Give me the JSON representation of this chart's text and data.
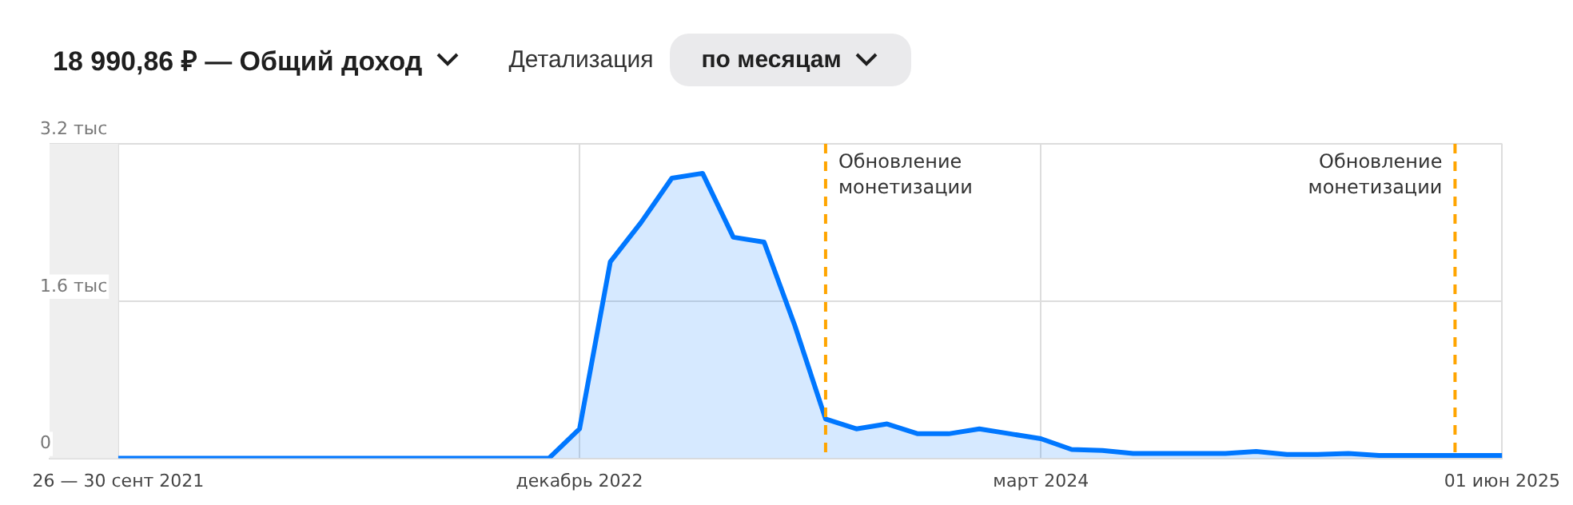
{
  "chart_data": {
    "type": "area",
    "title": "18 990,86 ₽ — Общий доход",
    "annotations": [
      "Детализация",
      "по месяцам"
    ],
    "x": [
      "2021-09",
      "2021-10",
      "2021-11",
      "2021-12",
      "2022-01",
      "2022-02",
      "2022-03",
      "2022-04",
      "2022-05",
      "2022-06",
      "2022-07",
      "2022-08",
      "2022-09",
      "2022-10",
      "2022-11",
      "2022-12",
      "2023-01",
      "2023-02",
      "2023-03",
      "2023-04",
      "2023-05",
      "2023-06",
      "2023-07",
      "2023-08",
      "2023-09",
      "2023-10",
      "2023-11",
      "2023-12",
      "2024-01",
      "2024-02",
      "2024-03",
      "2024-04",
      "2024-05",
      "2024-06",
      "2024-07",
      "2024-08",
      "2024-09",
      "2024-10",
      "2024-11",
      "2024-12",
      "2025-01",
      "2025-02",
      "2025-03",
      "2025-04",
      "2025-05",
      "2025-06"
    ],
    "series": [
      {
        "color": "#0077ff",
        "values": [
          0,
          0,
          0,
          0,
          0,
          0,
          0,
          0,
          0,
          0,
          0,
          0,
          0,
          0,
          0,
          0.3,
          2,
          2.4,
          2.85,
          2.9,
          2.25,
          2.2,
          1.35,
          0.4,
          0.3,
          0.35,
          0.25,
          0.25,
          0.3,
          0.25,
          0.2,
          0.09,
          0.08,
          0.05,
          0.05,
          0.05,
          0.05,
          0.07,
          0.04,
          0.04,
          0.05,
          0.03,
          0.03,
          0.03,
          0.03,
          0.03
        ]
      }
    ],
    "xlim": [
      "2021-06-24",
      "2025-06"
    ],
    "xticks": [
      {
        "value": "2021-09",
        "label": "26 — 30 сент 2021"
      },
      {
        "value": "2022-12",
        "label": "декабрь 2022"
      },
      {
        "value": "2024-03",
        "label": "март 2024"
      },
      {
        "value": "2025-06",
        "label": "01 июн 2025"
      }
    ],
    "ylim": [
      0,
      3.2
    ],
    "yticks": [
      0,
      {
        "value": 1.6,
        "label": "1.6 тыс"
      },
      {
        "value": 3.2,
        "label": "3.2 тыс"
      }
    ],
    "ref_lines": [
      {
        "axis": "x",
        "value": "2023-08",
        "label": "Обновление монетизации",
        "color": "#ffa500",
        "line_style": "dashed"
      },
      {
        "axis": "x",
        "value": "2025-04-15",
        "label": "Обновление монетизации",
        "color": "#ffa500",
        "line_style": "dashed"
      }
    ],
    "bands": [
      {
        "axis": "x",
        "from": "2021-06-24",
        "to": "2021-09",
        "color": "#efefef"
      }
    ],
    "grid": true,
    "legend": false,
    "marker": "none",
    "line_style": "solid"
  }
}
